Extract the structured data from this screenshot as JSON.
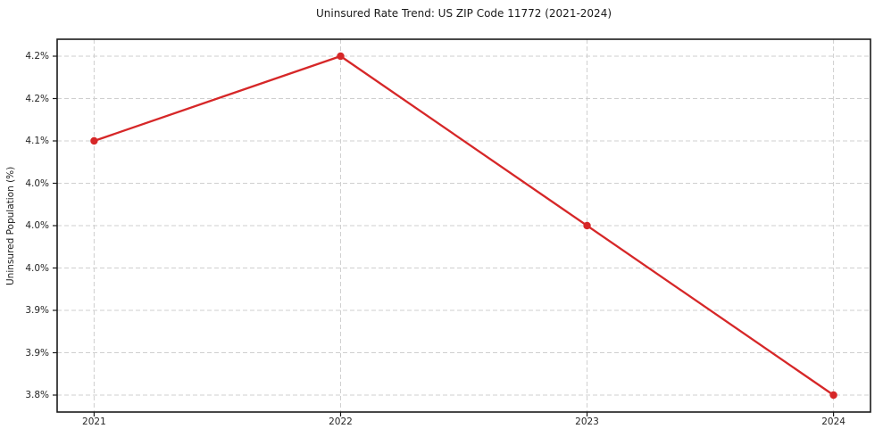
{
  "figure": {
    "background": "#ffffff"
  },
  "chart_data": {
    "type": "line",
    "title": "Uninsured Rate Trend: US ZIP Code 11772 (2021-2024)",
    "xlabel": "",
    "ylabel": "Uninsured Population (%)",
    "x": [
      2021,
      2022,
      2023,
      2024
    ],
    "values": [
      4.1,
      4.2,
      4.0,
      3.8
    ],
    "xticks": {
      "values": [
        2021,
        2022,
        2023,
        2024
      ],
      "labels": [
        "2021",
        "2022",
        "2023",
        "2024"
      ]
    },
    "yticks": {
      "values": [
        4.2,
        4.15,
        4.1,
        4.05,
        4.0,
        3.95,
        3.9,
        3.85,
        3.8
      ],
      "labels": [
        "4.2%",
        "4.2%",
        "4.1%",
        "4.0%",
        "4.0%",
        "4.0%",
        "3.9%",
        "3.9%",
        "3.8%"
      ]
    },
    "xlim": [
      2020.85,
      2024.15
    ],
    "ylim": [
      3.78,
      4.22
    ],
    "grid": true,
    "legend": false,
    "colors": {
      "line": "#d62728",
      "marker": "#d62728",
      "grid": "#cfcfcf",
      "spine": "#1a1a1a",
      "text": "#262626"
    }
  }
}
